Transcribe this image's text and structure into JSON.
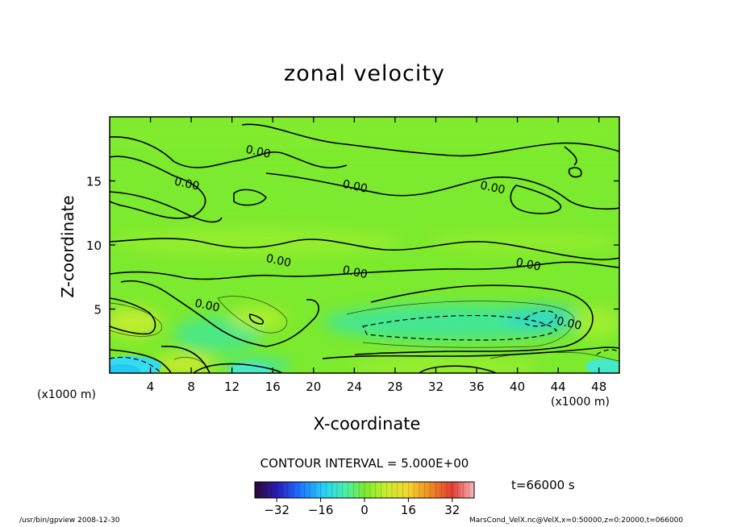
{
  "chart_data": {
    "type": "heatmap",
    "title": "zonal velocity",
    "xlabel": "X-coordinate",
    "ylabel": "Z-coordinate",
    "x_unit": "(x1000 m)",
    "xlim": [
      0,
      50
    ],
    "ylim": [
      0,
      20
    ],
    "x_ticks": [
      4,
      8,
      12,
      16,
      20,
      24,
      28,
      32,
      36,
      40,
      44,
      48
    ],
    "y_ticks": [
      5,
      10,
      15
    ],
    "contour_interval_label": "CONTOUR INTERVAL = 5.000E+00",
    "contour_label_text": "0.00",
    "contour_labels_at": [
      [
        7.5,
        14.5
      ],
      [
        14.5,
        17.0
      ],
      [
        24.0,
        14.3
      ],
      [
        37.5,
        14.2
      ],
      [
        16.5,
        8.5
      ],
      [
        24.0,
        7.6
      ],
      [
        41.0,
        8.2
      ],
      [
        45.0,
        3.6
      ],
      [
        9.5,
        5.0
      ]
    ],
    "colorbar": {
      "min": -40,
      "max": 40,
      "ticks": [
        -32,
        -16,
        0,
        16,
        32
      ]
    },
    "time_label": "t=66000 s",
    "footer_left": "/usr/bin/gpview  2008-12-30",
    "footer_right": "MarsCond_VelX.nc@VelX,x=0:50000,z=0:20000,t=066000"
  },
  "colors": {
    "background": "#ffffff",
    "field_base": "#7cea2e",
    "axis": "#000000"
  }
}
